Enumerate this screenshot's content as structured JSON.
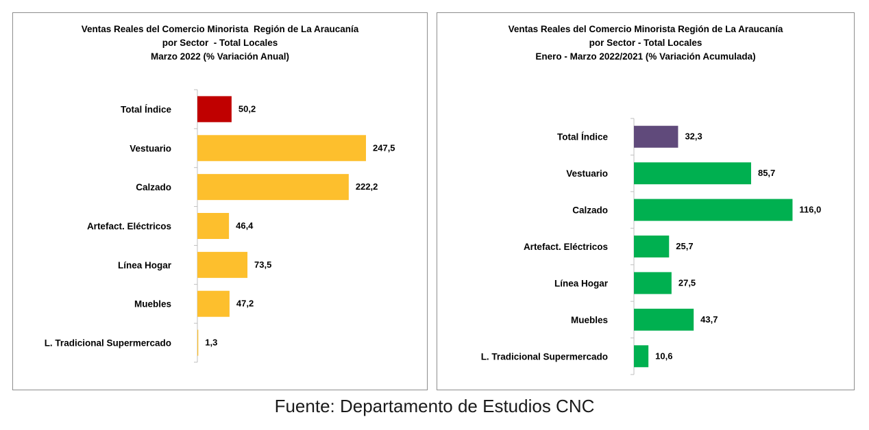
{
  "source": "Fuente: Departamento de Estudios CNC",
  "chart_data": [
    {
      "type": "bar",
      "orientation": "horizontal",
      "title_lines": [
        "Ventas Reales del Comercio Minorista  Región de La Araucanía",
        "por Sector  - Total Locales",
        "Marzo 2022 (% Variación Anual)"
      ],
      "categories": [
        "Total Índice",
        "Vestuario",
        "Calzado",
        "Artefact. Eléctricos",
        "Línea Hogar",
        "Muebles",
        "L. Tradicional Supermercado"
      ],
      "values": [
        50.2,
        247.5,
        222.2,
        46.4,
        73.5,
        47.2,
        1.3
      ],
      "value_labels": [
        "50,2",
        "247,5",
        "222,2",
        "46,4",
        "73,5",
        "47,2",
        "1,3"
      ],
      "colors": [
        "#c00000",
        "#fdbf2d",
        "#fdbf2d",
        "#fdbf2d",
        "#fdbf2d",
        "#fdbf2d",
        "#fdbf2d"
      ],
      "grid": false,
      "legend": "none"
    },
    {
      "type": "bar",
      "orientation": "horizontal",
      "title_lines": [
        "Ventas Reales del Comercio Minorista Región de La Araucanía",
        "por Sector - Total Locales",
        "Enero - Marzo 2022/2021 (% Variación Acumulada)"
      ],
      "categories": [
        "Total Índice",
        "Vestuario",
        "Calzado",
        "Artefact. Eléctricos",
        "Línea Hogar",
        "Muebles",
        "L. Tradicional Supermercado"
      ],
      "values": [
        32.3,
        85.7,
        116.0,
        25.7,
        27.5,
        43.7,
        10.6
      ],
      "value_labels": [
        "32,3",
        "85,7",
        "116,0",
        "25,7",
        "27,5",
        "43,7",
        "10,6"
      ],
      "colors": [
        "#604a7b",
        "#00b050",
        "#00b050",
        "#00b050",
        "#00b050",
        "#00b050",
        "#00b050"
      ],
      "grid": false,
      "legend": "none"
    }
  ]
}
